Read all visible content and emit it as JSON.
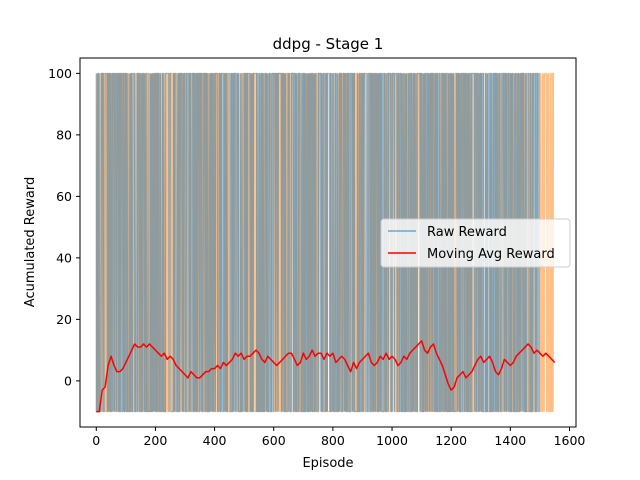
{
  "chart_data": {
    "type": "line",
    "title": "ddpg - Stage 1",
    "xlabel": "Episode",
    "ylabel": "Acumulated Reward",
    "xlim": [
      -55,
      1622
    ],
    "ylim": [
      -15,
      105
    ],
    "xticks": [
      0,
      200,
      400,
      600,
      800,
      1000,
      1200,
      1400,
      1600
    ],
    "yticks": [
      0,
      20,
      40,
      60,
      80,
      100
    ],
    "grid": false,
    "legend_position": "center-right",
    "legend": [
      "Raw Reward",
      "Moving Avg Reward"
    ],
    "series": [
      {
        "name": "Raw Reward",
        "color": "#1f77b4",
        "values_low": -10,
        "values_high": 100,
        "x_range": [
          0,
          1500
        ]
      },
      {
        "name": "",
        "color": "#ff7f0e",
        "values_low": -10,
        "values_high": 100,
        "x_range": [
          0,
          1550
        ]
      },
      {
        "name": "Moving Avg Reward",
        "color": "#ff0000",
        "x": [
          0,
          10,
          20,
          30,
          40,
          50,
          60,
          70,
          80,
          90,
          100,
          110,
          120,
          130,
          140,
          150,
          160,
          170,
          180,
          190,
          200,
          210,
          220,
          230,
          240,
          250,
          260,
          270,
          280,
          290,
          300,
          310,
          320,
          330,
          340,
          350,
          360,
          370,
          380,
          390,
          400,
          410,
          420,
          430,
          440,
          450,
          460,
          470,
          480,
          490,
          500,
          510,
          520,
          530,
          540,
          550,
          560,
          570,
          580,
          590,
          600,
          610,
          620,
          630,
          640,
          650,
          660,
          670,
          680,
          690,
          700,
          710,
          720,
          730,
          740,
          750,
          760,
          770,
          780,
          790,
          800,
          810,
          820,
          830,
          840,
          850,
          860,
          870,
          880,
          890,
          900,
          910,
          920,
          930,
          940,
          950,
          960,
          970,
          980,
          990,
          1000,
          1010,
          1020,
          1030,
          1040,
          1050,
          1060,
          1070,
          1080,
          1090,
          1100,
          1110,
          1120,
          1130,
          1140,
          1150,
          1160,
          1170,
          1180,
          1190,
          1200,
          1210,
          1220,
          1230,
          1240,
          1250,
          1260,
          1270,
          1280,
          1290,
          1300,
          1310,
          1320,
          1330,
          1340,
          1350,
          1360,
          1370,
          1380,
          1390,
          1400,
          1410,
          1420,
          1430,
          1440,
          1450,
          1460,
          1470,
          1480,
          1490,
          1500,
          1510,
          1520,
          1530,
          1540,
          1550
        ],
        "values": [
          -10,
          -10,
          -3,
          -2,
          5,
          8,
          5,
          3,
          3,
          4,
          6,
          8,
          10,
          12,
          11,
          11,
          12,
          11,
          12,
          11,
          10,
          9,
          8,
          9,
          7,
          8,
          7,
          5,
          4,
          3,
          2,
          1,
          3,
          2,
          1,
          1,
          2,
          3,
          3,
          4,
          4,
          5,
          4,
          6,
          5,
          6,
          7,
          9,
          8,
          9,
          7,
          8,
          8,
          9,
          10,
          9,
          7,
          6,
          8,
          7,
          6,
          5,
          6,
          7,
          8,
          9,
          9,
          7,
          5,
          6,
          9,
          7,
          8,
          10,
          8,
          9,
          9,
          7,
          9,
          8,
          9,
          6,
          7,
          8,
          7,
          5,
          3,
          6,
          4,
          6,
          7,
          8,
          9,
          6,
          5,
          6,
          8,
          7,
          9,
          7,
          8,
          7,
          5,
          6,
          8,
          7,
          9,
          10,
          11,
          12,
          13,
          10,
          9,
          11,
          12,
          9,
          7,
          5,
          2,
          -1,
          -3,
          -2,
          1,
          2,
          3,
          1,
          2,
          3,
          5,
          7,
          8,
          6,
          7,
          8,
          6,
          3,
          2,
          4,
          7,
          6,
          5,
          6,
          8,
          9,
          10,
          11,
          12,
          11,
          9,
          10,
          9,
          8,
          9,
          8,
          7,
          6
        ]
      }
    ]
  }
}
